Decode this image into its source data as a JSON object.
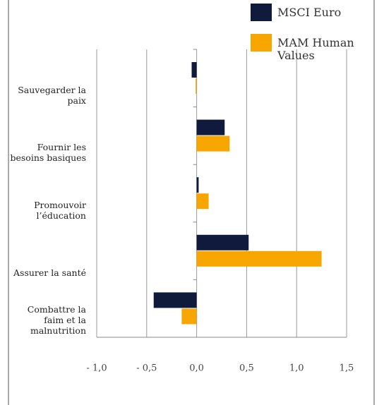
{
  "chart_data": {
    "type": "hbar",
    "categories": [
      "Sauvegarder la paix",
      "Fournir les besoins basiques",
      "Promouvoir l’éducation",
      "Assurer la santé",
      "Combattre la faim et la malnutrition"
    ],
    "series": [
      {
        "name": "MSCI Euro",
        "color": "#0f1a3c",
        "values": [
          -0.05,
          0.28,
          0.02,
          0.52,
          -0.43
        ]
      },
      {
        "name": "MAM Human Values",
        "color": "#f7a600",
        "values": [
          -0.01,
          0.33,
          0.12,
          1.25,
          -0.15
        ]
      }
    ],
    "xlim": [
      -1.0,
      1.5
    ],
    "xticks": [
      {
        "value": -1.0,
        "label": "- 1,0"
      },
      {
        "value": -0.5,
        "label": "- 0,5"
      },
      {
        "value": 0,
        "label": "0,0"
      },
      {
        "value": 0.5,
        "label": "0,5"
      },
      {
        "value": 1.0,
        "label": "1,0"
      },
      {
        "value": 1.5,
        "label": "1,5"
      }
    ],
    "grid": true,
    "legend": "top-right"
  }
}
